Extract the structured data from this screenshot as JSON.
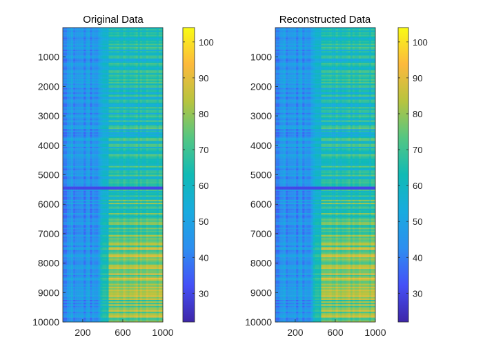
{
  "chart_data": [
    {
      "type": "heatmap",
      "title": "Original Data",
      "xlabel": "",
      "ylabel": "",
      "x_range": [
        1,
        1000
      ],
      "y_range": [
        1,
        10000
      ],
      "y_reversed": true,
      "x_ticks": [
        200,
        600,
        1000
      ],
      "x_tick_labels": [
        "200",
        "600",
        "1000"
      ],
      "y_ticks": [
        1000,
        2000,
        3000,
        4000,
        5000,
        6000,
        7000,
        8000,
        9000,
        10000
      ],
      "y_tick_labels": [
        "1000",
        "2000",
        "3000",
        "4000",
        "5000",
        "6000",
        "7000",
        "8000",
        "9000",
        "10000"
      ],
      "clim": [
        22,
        104
      ],
      "colormap": "parula",
      "colorbar_ticks": [
        30,
        40,
        50,
        60,
        70,
        80,
        90,
        100
      ],
      "colorbar_tick_labels": [
        "30",
        "40",
        "50",
        "60",
        "70",
        "80",
        "90",
        "100"
      ],
      "description_values": {
        "left_columns_mean": 45,
        "right_columns_mean_top": 62,
        "right_columns_mean_bottom": 78,
        "dark_row_at": 5450
      }
    },
    {
      "type": "heatmap",
      "title": "Reconstructed Data",
      "xlabel": "",
      "ylabel": "",
      "x_range": [
        1,
        1000
      ],
      "y_range": [
        1,
        10000
      ],
      "y_reversed": true,
      "x_ticks": [
        200,
        600,
        1000
      ],
      "x_tick_labels": [
        "200",
        "600",
        "1000"
      ],
      "y_ticks": [
        1000,
        2000,
        3000,
        4000,
        5000,
        6000,
        7000,
        8000,
        9000,
        10000
      ],
      "y_tick_labels": [
        "1000",
        "2000",
        "3000",
        "4000",
        "5000",
        "6000",
        "7000",
        "8000",
        "9000",
        "10000"
      ],
      "clim": [
        22,
        104
      ],
      "colormap": "parula",
      "colorbar_ticks": [
        30,
        40,
        50,
        60,
        70,
        80,
        90,
        100
      ],
      "colorbar_tick_labels": [
        "30",
        "40",
        "50",
        "60",
        "70",
        "80",
        "90",
        "100"
      ],
      "description_values": {
        "left_columns_mean": 45,
        "right_columns_mean_top": 62,
        "right_columns_mean_bottom": 78,
        "dark_row_at": 5450
      }
    }
  ]
}
